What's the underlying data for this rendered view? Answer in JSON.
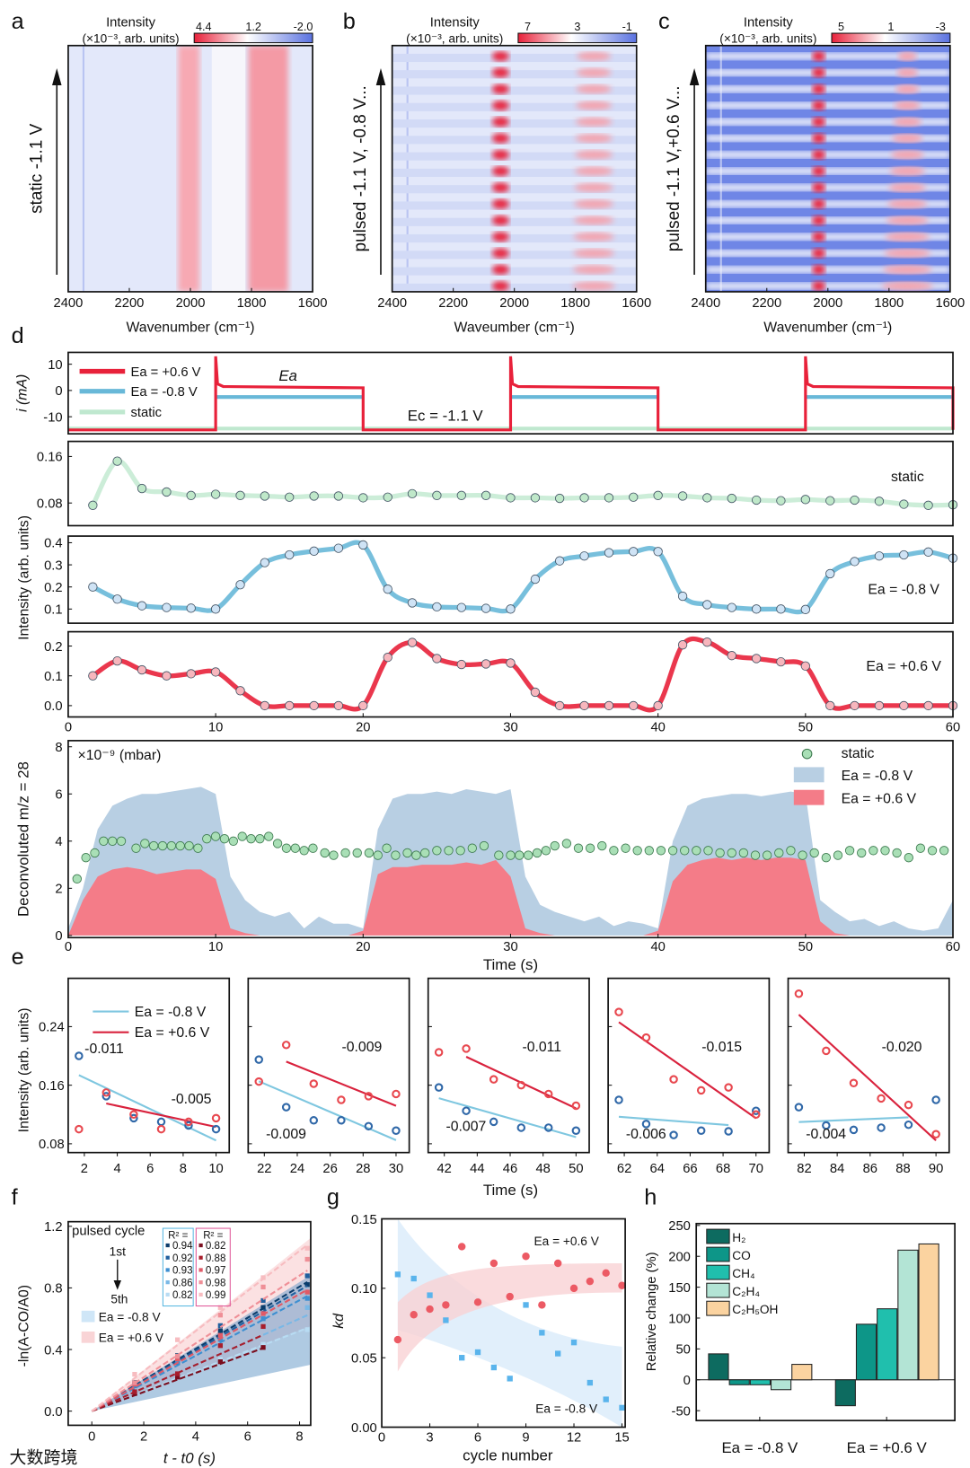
{
  "panel_letters": [
    "a",
    "b",
    "c",
    "d",
    "e",
    "f",
    "g",
    "h"
  ],
  "watermark": "大数跨境",
  "chart_data": {
    "a": {
      "type": "heatmap",
      "ylabel": "static -1.1 V",
      "xlabel": "Wavenumber (cm⁻¹)",
      "xlim": [
        2400,
        1600
      ],
      "xticks": [
        "2400",
        "2200",
        "2000",
        "1800",
        "1600"
      ],
      "colorbar": {
        "title": "Intensity",
        "unit": "(×10⁻³, arb. units)",
        "ticks": [
          "4.4",
          "1.2",
          "-2.0"
        ]
      }
    },
    "b": {
      "type": "heatmap",
      "ylabel": "pulsed -1.1 V, -0.8 V...",
      "xlabel": "Waveumber (cm⁻¹)",
      "xlim": [
        2400,
        1600
      ],
      "xticks": [
        "2400",
        "2200",
        "2000",
        "1800",
        "1600"
      ],
      "colorbar": {
        "title": "Intensity",
        "unit": "(×10⁻³, arb. units)",
        "ticks": [
          "7",
          "3",
          "-1"
        ]
      }
    },
    "c": {
      "type": "heatmap",
      "ylabel": "pulsed -1.1 V,+0.6 V...",
      "xlabel": "Wavenumber (cm⁻¹)",
      "xlim": [
        2400,
        1600
      ],
      "xticks": [
        "2400",
        "2200",
        "2000",
        "1800",
        "1600"
      ],
      "colorbar": {
        "title": "Intensity",
        "unit": "(×10⁻³, arb. units)",
        "ticks": [
          "5",
          "1",
          "-3"
        ]
      }
    },
    "d": {
      "type": "line",
      "current": {
        "ylabel": "i (mA)",
        "ylim": [
          -16.5,
          14.5
        ],
        "yticks": [
          10,
          0,
          -10
        ],
        "yticklabels": [
          "10",
          "0",
          "-10"
        ],
        "legend": [
          "Ea = +0.6 V",
          "Ea = -0.8 V",
          "static"
        ],
        "annot_ea": "Ea",
        "annot_ec": "Ec = -1.1 V",
        "cathodic_mA": -15,
        "anodic_mA": {
          "plus06": 1,
          "minus08": -2.5
        },
        "static_mA": -14.5,
        "switch_times": [
          10,
          20,
          30,
          40,
          50,
          60
        ]
      },
      "x": [
        1.67,
        3.33,
        5,
        6.67,
        8.33,
        10,
        11.67,
        13.33,
        15,
        16.67,
        18.33,
        20,
        21.67,
        23.33,
        25,
        26.67,
        28.33,
        30,
        31.67,
        33.33,
        35,
        36.67,
        38.33,
        40,
        41.67,
        43.33,
        45,
        46.67,
        48.33,
        50,
        51.67,
        53.33,
        55,
        56.67,
        58.33,
        60
      ],
      "static": {
        "label": "static",
        "ylim": [
          0.041,
          0.186
        ],
        "yticklabels": [
          "0.16",
          "0.08"
        ],
        "yticks": [
          0.16,
          0.08
        ],
        "values": [
          0.076,
          0.152,
          0.105,
          0.099,
          0.093,
          0.095,
          0.093,
          0.092,
          0.09,
          0.092,
          0.092,
          0.089,
          0.09,
          0.096,
          0.093,
          0.093,
          0.093,
          0.089,
          0.089,
          0.088,
          0.089,
          0.089,
          0.09,
          0.093,
          0.092,
          0.089,
          0.088,
          0.085,
          0.084,
          0.086,
          0.084,
          0.085,
          0.083,
          0.078,
          0.076,
          0.077
        ]
      },
      "minus08": {
        "label": "Ea = -0.8 V",
        "ylim": [
          0.036,
          0.43
        ],
        "yticklabels": [
          "0.4",
          "0.3",
          "0.2",
          "0.1"
        ],
        "yticks": [
          0.4,
          0.3,
          0.2,
          0.1
        ],
        "values": [
          0.2,
          0.145,
          0.115,
          0.107,
          0.104,
          0.1,
          0.21,
          0.31,
          0.345,
          0.362,
          0.375,
          0.39,
          0.19,
          0.128,
          0.11,
          0.107,
          0.103,
          0.1,
          0.235,
          0.318,
          0.34,
          0.355,
          0.36,
          0.36,
          0.158,
          0.12,
          0.107,
          0.1,
          0.1,
          0.098,
          0.26,
          0.315,
          0.34,
          0.345,
          0.358,
          0.33
        ]
      },
      "plus06": {
        "label": "Ea = +0.6 V",
        "ylim": [
          -0.038,
          0.248
        ],
        "yticklabels": [
          "0.2",
          "0.1",
          "0.0"
        ],
        "yticks": [
          0.2,
          0.1,
          0
        ],
        "values": [
          0.1,
          0.15,
          0.12,
          0.1,
          0.107,
          0.113,
          0.05,
          0,
          0,
          0,
          0,
          0,
          0.162,
          0.212,
          0.158,
          0.138,
          0.14,
          0.143,
          0.045,
          0,
          0,
          0,
          0,
          0,
          0.204,
          0.213,
          0.168,
          0.158,
          0.147,
          0.133,
          0,
          0,
          0,
          0,
          0,
          0
        ]
      },
      "ylabel": "Intensity (arb. units)",
      "xlim": [
        0,
        60
      ],
      "xticklabels": [
        "0",
        "10",
        "20",
        "30",
        "40",
        "50",
        "60"
      ]
    },
    "ms": {
      "type": "area",
      "ylabel": "Deconvoluted m/z = 28",
      "xlabel": "Time (s)",
      "unit": "×10⁻⁹ (mbar)",
      "xlim": [
        0,
        60
      ],
      "ylim": [
        -0.09,
        8.26
      ],
      "xticklabels": [
        "0",
        "10",
        "20",
        "30",
        "40",
        "50",
        "60"
      ],
      "yticklabels": [
        "0",
        "2",
        "4",
        "6",
        "8"
      ],
      "legend": [
        "static",
        "Ea = -0.8 V",
        "Ea = +0.6 V"
      ],
      "area_x": [
        0,
        1,
        2,
        3,
        4,
        5,
        6,
        7,
        8,
        9,
        10,
        11,
        12,
        13,
        14,
        15,
        16,
        17,
        18,
        19,
        20,
        21,
        22,
        23,
        24,
        25,
        26,
        27,
        28,
        29,
        30,
        31,
        32,
        33,
        34,
        35,
        36,
        37,
        38,
        39,
        40,
        41,
        42,
        43,
        44,
        45,
        46,
        47,
        48,
        49,
        50,
        51,
        52,
        53,
        54,
        55,
        56,
        57,
        58,
        59,
        60
      ],
      "minus08": [
        0.3,
        2,
        4.5,
        5.5,
        5.8,
        6,
        6,
        6.1,
        6.2,
        6.3,
        6,
        2.5,
        1.5,
        1,
        0.8,
        1,
        0.3,
        0.8,
        0.5,
        0.5,
        0.3,
        4.5,
        5.8,
        6,
        6,
        6.1,
        6,
        6.2,
        6.1,
        6,
        6.2,
        2.5,
        1.3,
        1,
        0.8,
        0.6,
        0.8,
        0.4,
        0.6,
        0.5,
        0.3,
        4,
        5.5,
        5.8,
        5.9,
        6,
        6,
        5.9,
        6,
        6.1,
        6,
        1.5,
        1,
        0.6,
        0.7,
        0.4,
        0.6,
        0.3,
        0.2,
        0.3,
        1.5
      ],
      "plus06": [
        0,
        1.5,
        2.5,
        2.8,
        2.9,
        2.8,
        2.6,
        2.7,
        2.8,
        2.8,
        2.4,
        0.3,
        0.1,
        0,
        0,
        0,
        0,
        0,
        0,
        0,
        0.2,
        2.6,
        2.9,
        2.9,
        3,
        3,
        3,
        3.1,
        3,
        3.2,
        2.5,
        0.3,
        0.1,
        0,
        0,
        0,
        0,
        0,
        0,
        0,
        0.2,
        2.3,
        3,
        3.2,
        3.3,
        3.2,
        3.3,
        3.2,
        3.3,
        3.3,
        3.2,
        0.6,
        0.1,
        0,
        0,
        0,
        0,
        0,
        0,
        0,
        0
      ],
      "static_x": [
        0.6,
        1.2,
        1.8,
        2.4,
        3,
        3.6,
        4.6,
        5.2,
        5.8,
        6.4,
        7,
        7.6,
        8.2,
        8.8,
        9.4,
        10,
        10.6,
        11.2,
        11.8,
        12.4,
        13,
        13.6,
        14.2,
        14.8,
        15.4,
        16,
        16.6,
        17.4,
        18,
        18.8,
        19.6,
        20.4,
        21,
        21.6,
        22.2,
        23,
        23.6,
        24.2,
        25,
        25.8,
        26.6,
        27.4,
        28.2,
        29.2,
        30,
        30.6,
        31.2,
        31.8,
        32.4,
        33,
        33.8,
        34.6,
        35.4,
        36.2,
        37,
        37.8,
        38.6,
        39.4,
        40.2,
        41,
        41.8,
        42.6,
        43.4,
        44.2,
        45,
        45.8,
        46.6,
        47.4,
        48.2,
        49,
        49.8,
        50.6,
        51.4,
        52.2,
        53,
        53.8,
        54.6,
        55.4,
        56.2,
        57,
        57.8,
        58.6,
        59.4
      ],
      "static": [
        2.4,
        3.3,
        3.5,
        4,
        4,
        4,
        3.7,
        3.9,
        3.8,
        3.8,
        3.8,
        3.8,
        3.8,
        3.7,
        4.1,
        4.2,
        4.1,
        4,
        4.2,
        4.1,
        4.1,
        4.2,
        3.9,
        3.7,
        3.7,
        3.6,
        3.7,
        3.5,
        3.4,
        3.5,
        3.5,
        3.5,
        3.4,
        3.7,
        3.4,
        3.5,
        3.4,
        3.5,
        3.6,
        3.6,
        3.6,
        3.7,
        3.8,
        3.4,
        3.4,
        3.4,
        3.4,
        3.5,
        3.6,
        3.8,
        3.9,
        3.7,
        3.7,
        3.8,
        3.6,
        3.7,
        3.6,
        3.6,
        3.6,
        3.6,
        3.6,
        3.6,
        3.6,
        3.5,
        3.5,
        3.5,
        3.4,
        3.4,
        3.5,
        3.6,
        3.4,
        3.5,
        3.3,
        3.4,
        3.6,
        3.5,
        3.6,
        3.6,
        3.5,
        3.3,
        3.7,
        3.6,
        3.6
      ]
    },
    "e": {
      "type": "scatter",
      "ylabel": "Intensity (arb. units)",
      "xlabel": "Time (s)",
      "ylim": [
        0.068,
        0.306
      ],
      "yticklabels": [
        "0.24",
        "0.16",
        "0.08"
      ],
      "yticks": [
        0.24,
        0.16,
        0.08
      ],
      "legend": [
        "Ea = -0.8 V",
        "Ea = +0.6 V"
      ],
      "panels": [
        {
          "xlim": [
            1.02,
            10.8
          ],
          "xticklabels": [
            "2",
            "4",
            "6",
            "8",
            "10"
          ],
          "xticks": [
            2,
            4,
            6,
            8,
            10
          ],
          "x": [
            1.67,
            3.33,
            5,
            6.67,
            8.33,
            10
          ],
          "blue": [
            0.2,
            0.145,
            0.115,
            0.11,
            0.105,
            0.1
          ],
          "red": [
            0.1,
            0.15,
            0.12,
            0.1,
            0.11,
            0.115
          ],
          "red_fit_from": 1,
          "blue_slope": "-0.011",
          "red_slope": "-0.005"
        },
        {
          "xlim": [
            21.02,
            30.8
          ],
          "xticklabels": [
            "22",
            "24",
            "26",
            "28",
            "30"
          ],
          "xticks": [
            22,
            24,
            26,
            28,
            30
          ],
          "x": [
            21.67,
            23.33,
            25,
            26.67,
            28.33,
            30
          ],
          "blue": [
            0.195,
            0.13,
            0.112,
            0.112,
            0.104,
            0.098
          ],
          "red": [
            0.165,
            0.215,
            0.162,
            0.14,
            0.145,
            0.148
          ],
          "red_fit_from": 1,
          "blue_slope": "-0.009",
          "red_slope": "-0.009"
        },
        {
          "xlim": [
            41.02,
            50.8
          ],
          "xticklabels": [
            "42",
            "44",
            "46",
            "48",
            "50"
          ],
          "xticks": [
            42,
            44,
            46,
            48,
            50
          ],
          "x": [
            41.67,
            43.33,
            45,
            46.67,
            48.33,
            50
          ],
          "blue": [
            0.157,
            0.125,
            0.11,
            0.102,
            0.102,
            0.098
          ],
          "red": [
            0.205,
            0.21,
            0.168,
            0.16,
            0.148,
            0.132
          ],
          "red_fit_from": 1,
          "blue_slope": "-0.007",
          "red_slope": "-0.011"
        },
        {
          "xlim": [
            61.02,
            70.8
          ],
          "xticklabels": [
            "62",
            "64",
            "66",
            "68",
            "70"
          ],
          "xticks": [
            62,
            64,
            66,
            68,
            70
          ],
          "x": [
            61.67,
            63.33,
            65,
            66.67,
            68.33,
            70
          ],
          "blue": [
            0.14,
            0.107,
            0.092,
            0.098,
            0.097,
            0.125
          ],
          "red": [
            0.26,
            0.225,
            0.168,
            0.153,
            0.157,
            0.12
          ],
          "red_fit_from": 0,
          "blue_slope": "-0.006",
          "red_slope": "-0.015"
        },
        {
          "xlim": [
            81.02,
            90.8
          ],
          "xticklabels": [
            "82",
            "84",
            "86",
            "88",
            "90"
          ],
          "xticks": [
            82,
            84,
            86,
            88,
            90
          ],
          "x": [
            81.67,
            83.33,
            85,
            86.67,
            88.33,
            90
          ],
          "blue": [
            0.13,
            0.105,
            0.099,
            0.102,
            0.106,
            0.14
          ],
          "red": [
            0.285,
            0.207,
            0.163,
            0.142,
            0.133,
            0.093
          ],
          "red_fit_from": 0,
          "blue_slope": "-0.004",
          "red_slope": "-0.020"
        }
      ]
    },
    "f": {
      "type": "line",
      "ylabel": "-ln(A-CO/A0)",
      "xlabel": "t - t0 (s)",
      "xlim": [
        -0.91,
        8.43
      ],
      "ylim": [
        -0.092,
        1.23
      ],
      "xticklabels": [
        "0",
        "2",
        "4",
        "6",
        "8"
      ],
      "xticks": [
        0,
        2,
        4,
        6,
        8
      ],
      "yticklabels": [
        "0.0",
        "0.4",
        "0.8",
        "1.2"
      ],
      "yticks": [
        0,
        0.4,
        0.8,
        1.2
      ],
      "title": "pulsed cycle",
      "first": "1st",
      "last": "5th",
      "r2_label": "R² =",
      "blue": {
        "label": "Ea = -0.8 V",
        "slopes": [
          0.101,
          0.098,
          0.09,
          0.075,
          0.065
        ],
        "r2": [
          "0.94",
          "0.92",
          "0.93",
          "0.86",
          "0.82"
        ],
        "colors": [
          "#0b3c6b",
          "#1f5f9e",
          "#3d8fd1",
          "#79b8e6",
          "#b8dcf3"
        ]
      },
      "red": {
        "label": "Ea = +0.6 V",
        "slopes": [
          0.062,
          0.075,
          0.095,
          0.11,
          0.13
        ],
        "r2": [
          "0.82",
          "0.88",
          "0.97",
          "0.98",
          "0.99"
        ],
        "colors": [
          "#7a0e1e",
          "#a81e2c",
          "#e05a67",
          "#ef8f97",
          "#f7bcc0"
        ]
      }
    },
    "g": {
      "type": "scatter",
      "ylabel": "kd",
      "xlabel": "cycle number",
      "xlim": [
        0,
        15.2
      ],
      "ylim": [
        0,
        0.15
      ],
      "xticklabels": [
        "0",
        "3",
        "6",
        "9",
        "12",
        "15"
      ],
      "xticks": [
        0,
        3,
        6,
        9,
        12,
        15
      ],
      "yticklabels": [
        "0.00",
        "0.05",
        "0.10",
        "0.15"
      ],
      "yticks": [
        0,
        0.05,
        0.1,
        0.15
      ],
      "x": [
        1,
        2,
        3,
        4,
        5,
        6,
        7,
        8,
        9,
        10,
        11,
        12,
        13,
        14,
        15
      ],
      "red": {
        "label": "Ea = +0.6 V",
        "values": [
          0.063,
          0.081,
          0.085,
          0.088,
          0.13,
          0.09,
          0.118,
          0.094,
          0.123,
          0.088,
          0.118,
          0.1,
          0.105,
          0.111,
          0.102
        ]
      },
      "blue": {
        "label": "Ea = -0.8 V",
        "values": [
          0.11,
          0.107,
          0.095,
          0.077,
          0.05,
          0.054,
          0.043,
          0.035,
          0.088,
          0.068,
          0.053,
          0.061,
          0.032,
          0.02,
          0.014
        ]
      }
    },
    "h": {
      "type": "bar",
      "ylabel": "Relative change (%)",
      "ylim": [
        -66,
        253
      ],
      "yticklabels": [
        "250",
        "200",
        "150",
        "100",
        "50",
        "0",
        "-50"
      ],
      "yticks": [
        250,
        200,
        150,
        100,
        50,
        0,
        -50
      ],
      "categories": [
        "Ea = -0.8 V",
        "Ea = +0.6 V"
      ],
      "series": [
        {
          "name": "H₂",
          "color": "#0d6b60",
          "values": [
            42,
            -42
          ]
        },
        {
          "name": "CO",
          "color": "#0d9688",
          "values": [
            -8,
            90
          ]
        },
        {
          "name": "CH₄",
          "color": "#20bfad",
          "values": [
            -8,
            115
          ]
        },
        {
          "name": "C₂H₄",
          "color": "#b3e4d5",
          "values": [
            -16,
            210
          ]
        },
        {
          "name": "C₂H₅OH",
          "color": "#fbd3a0",
          "values": [
            25,
            220
          ]
        }
      ]
    },
    "colors": {
      "red": "#e8213a",
      "blue": "#68b8d8",
      "green": "#bfe8cf",
      "msblue": "#b8cfe3",
      "msred": "#f47c88"
    }
  }
}
